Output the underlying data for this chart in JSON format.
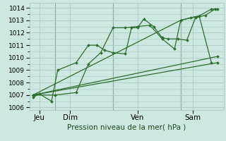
{
  "background_color": "#cce8e0",
  "grid_color": "#aaccc4",
  "line_color": "#2d6e2d",
  "marker_color": "#2d6e2d",
  "xlabel": "Pression niveau de la mer( hPa )",
  "ylim": [
    1005.8,
    1014.4
  ],
  "yticks": [
    1006,
    1007,
    1008,
    1009,
    1010,
    1011,
    1012,
    1013,
    1014
  ],
  "xlim": [
    -0.3,
    15.5
  ],
  "xtick_labels": [
    "Jeu",
    "Dim",
    "Ven",
    "Sam"
  ],
  "xtick_positions": [
    0.5,
    3.0,
    8.5,
    13.0
  ],
  "vline_positions": [
    1.8,
    6.5,
    12.0
  ],
  "series": [
    {
      "x": [
        0.0,
        0.5,
        1.5,
        2.0,
        3.5,
        4.5,
        5.2,
        5.8,
        6.5,
        7.5,
        8.0,
        8.5,
        9.0,
        9.8,
        10.5,
        11.0,
        11.8,
        12.5,
        13.2,
        14.0,
        14.8
      ],
      "y": [
        1006.8,
        1007.1,
        1006.5,
        1009.0,
        1009.6,
        1011.0,
        1011.0,
        1010.6,
        1010.4,
        1010.3,
        1012.4,
        1012.4,
        1013.1,
        1012.5,
        1011.6,
        1011.5,
        1011.5,
        1011.4,
        1013.2,
        1013.4,
        1013.9
      ]
    },
    {
      "x": [
        0.0,
        1.8,
        3.5,
        4.5,
        5.5,
        6.5,
        7.5,
        8.5,
        9.5,
        10.5,
        11.5,
        12.0,
        12.8,
        13.5,
        14.5
      ],
      "y": [
        1007.0,
        1007.0,
        1007.2,
        1009.5,
        1010.4,
        1012.4,
        1012.4,
        1012.5,
        1012.6,
        1011.5,
        1010.7,
        1013.0,
        1013.2,
        1013.35,
        1009.6
      ]
    },
    {
      "x": [
        0.0,
        15.0
      ],
      "y": [
        1007.0,
        1009.6
      ]
    },
    {
      "x": [
        0.0,
        15.0
      ],
      "y": [
        1007.0,
        1010.1
      ]
    },
    {
      "x": [
        0.0,
        12.0,
        13.5,
        14.5,
        15.0
      ],
      "y": [
        1007.0,
        1013.0,
        1013.35,
        1013.9,
        1013.9
      ]
    }
  ]
}
